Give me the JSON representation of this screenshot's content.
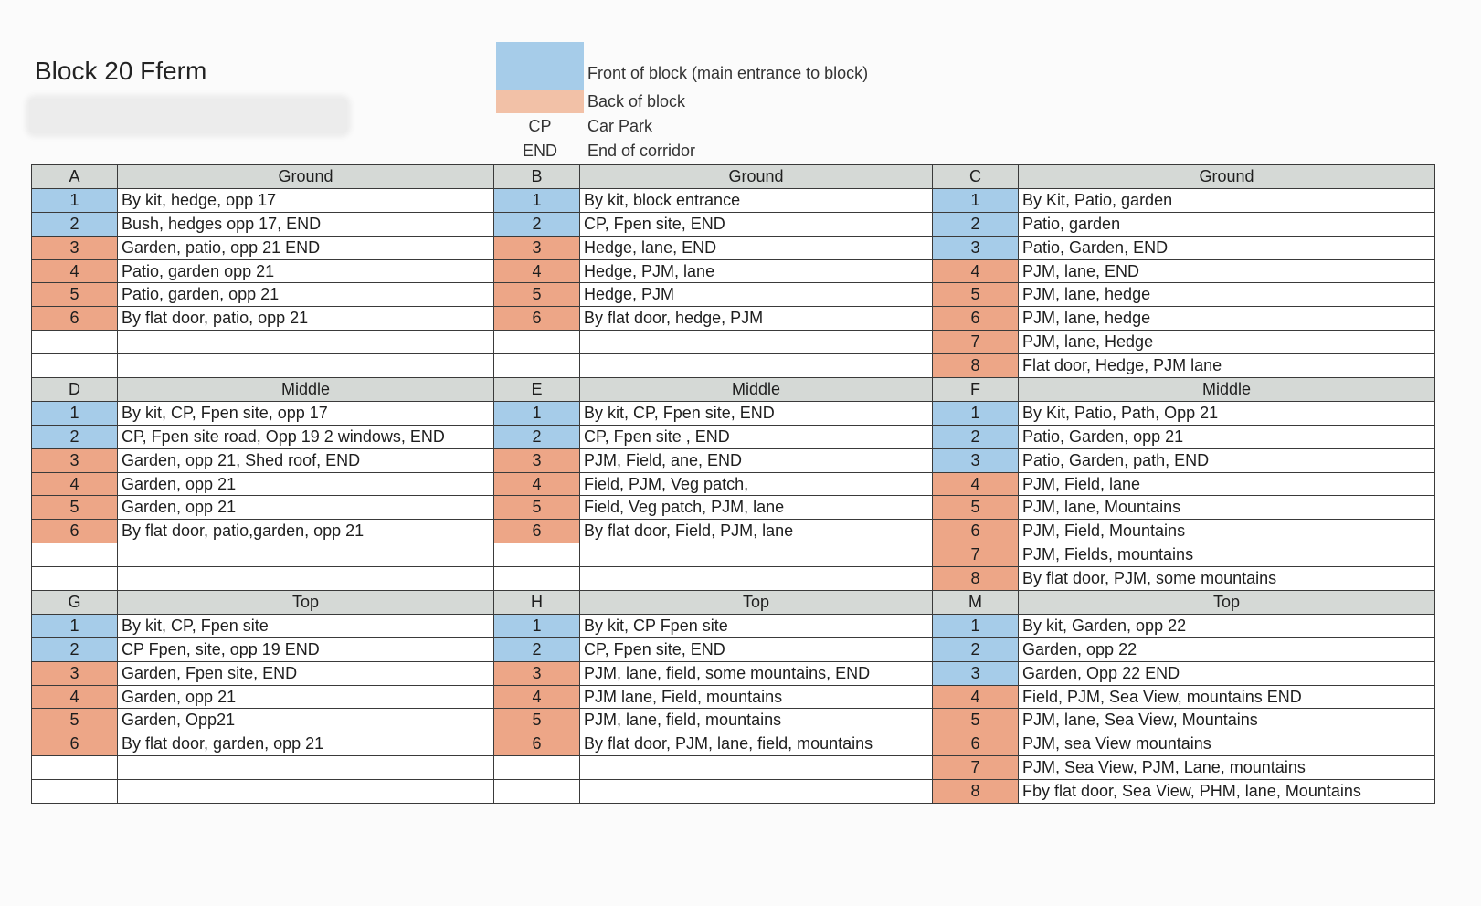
{
  "title": "Block 20  Fferm",
  "colors": {
    "front": "#a6cce9",
    "back": "#eda687",
    "header": "#d5d9d6"
  },
  "legend": {
    "front": "Front of block (main entrance to block)",
    "back": "Back of block",
    "cp_code": "CP",
    "cp_text": "Car Park",
    "end_code": "END",
    "end_text": "End of corridor"
  },
  "bands": [
    {
      "blocks": [
        {
          "letter": "A",
          "floor": "Ground",
          "rows": [
            {
              "n": "1",
              "side": "front",
              "text": "By kit, hedge, opp 17"
            },
            {
              "n": "2",
              "side": "front",
              "text": "Bush, hedges opp 17, END"
            },
            {
              "n": "3",
              "side": "back",
              "text": "Garden, patio, opp 21 END"
            },
            {
              "n": "4",
              "side": "back",
              "text": "Patio, garden opp 21"
            },
            {
              "n": "5",
              "side": "back",
              "text": "Patio, garden, opp 21"
            },
            {
              "n": "6",
              "side": "back",
              "text": "By flat door, patio, opp 21"
            }
          ]
        },
        {
          "letter": "B",
          "floor": "Ground",
          "rows": [
            {
              "n": "1",
              "side": "front",
              "text": "By kit, block entrance"
            },
            {
              "n": "2",
              "side": "front",
              "text": "CP, Fpen site, END"
            },
            {
              "n": "3",
              "side": "back",
              "text": "Hedge, lane, END"
            },
            {
              "n": "4",
              "side": "back",
              "text": "Hedge, PJM, lane"
            },
            {
              "n": "5",
              "side": "back",
              "text": "Hedge, PJM"
            },
            {
              "n": "6",
              "side": "back",
              "text": "By flat door, hedge, PJM"
            }
          ]
        },
        {
          "letter": "C",
          "floor": "Ground",
          "rows": [
            {
              "n": "1",
              "side": "front",
              "text": "By Kit, Patio, garden"
            },
            {
              "n": "2",
              "side": "front",
              "text": "Patio, garden"
            },
            {
              "n": "3",
              "side": "front",
              "text": "Patio, Garden, END"
            },
            {
              "n": "4",
              "side": "back",
              "text": "PJM, lane, END"
            },
            {
              "n": "5",
              "side": "back",
              "text": "PJM, lane, hedge"
            },
            {
              "n": "6",
              "side": "back",
              "text": "PJM, lane, hedge"
            },
            {
              "n": "7",
              "side": "back",
              "text": "PJM, lane, Hedge"
            },
            {
              "n": "8",
              "side": "back",
              "text": "Flat door, Hedge, PJM lane"
            }
          ]
        }
      ]
    },
    {
      "blocks": [
        {
          "letter": "D",
          "floor": "Middle",
          "rows": [
            {
              "n": "1",
              "side": "front",
              "text": "By kit, CP, Fpen site, opp 17"
            },
            {
              "n": "2",
              "side": "front",
              "text": "CP, Fpen site road, Opp 19 2 windows, END"
            },
            {
              "n": "3",
              "side": "back",
              "text": "Garden, opp 21, Shed roof, END"
            },
            {
              "n": "4",
              "side": "back",
              "text": "Garden, opp 21"
            },
            {
              "n": "5",
              "side": "back",
              "text": "Garden, opp 21"
            },
            {
              "n": "6",
              "side": "back",
              "text": "By flat door, patio,garden, opp 21"
            }
          ]
        },
        {
          "letter": "E",
          "floor": "Middle",
          "rows": [
            {
              "n": "1",
              "side": "front",
              "text": "By kit, CP, Fpen site, END"
            },
            {
              "n": "2",
              "side": "front",
              "text": "CP, Fpen site , END"
            },
            {
              "n": "3",
              "side": "back",
              "text": "PJM, Field, ane, END"
            },
            {
              "n": "4",
              "side": "back",
              "text": "Field, PJM, Veg patch,"
            },
            {
              "n": "5",
              "side": "back",
              "text": "Field, Veg patch, PJM, lane"
            },
            {
              "n": "6",
              "side": "back",
              "text": "By flat door, Field, PJM, lane"
            }
          ]
        },
        {
          "letter": "F",
          "floor": "Middle",
          "rows": [
            {
              "n": "1",
              "side": "front",
              "text": "By Kit, Patio, Path, Opp 21"
            },
            {
              "n": "2",
              "side": "front",
              "text": "Patio, Garden, opp 21"
            },
            {
              "n": "3",
              "side": "front",
              "text": "Patio, Garden, path, END"
            },
            {
              "n": "4",
              "side": "back",
              "text": "PJM, Field, lane"
            },
            {
              "n": "5",
              "side": "back",
              "text": "PJM, lane, Mountains"
            },
            {
              "n": "6",
              "side": "back",
              "text": "PJM, Field, Mountains"
            },
            {
              "n": "7",
              "side": "back",
              "text": "PJM, Fields, mountains"
            },
            {
              "n": "8",
              "side": "back",
              "text": "By flat door, PJM, some mountains"
            }
          ]
        }
      ]
    },
    {
      "blocks": [
        {
          "letter": "G",
          "floor": "Top",
          "rows": [
            {
              "n": "1",
              "side": "front",
              "text": "By kit, CP, Fpen site"
            },
            {
              "n": "2",
              "side": "front",
              "text": "CP Fpen, site, opp 19 END"
            },
            {
              "n": "3",
              "side": "back",
              "text": "Garden, Fpen site, END"
            },
            {
              "n": "4",
              "side": "back",
              "text": "Garden, opp 21"
            },
            {
              "n": "5",
              "side": "back",
              "text": "Garden, Opp21"
            },
            {
              "n": "6",
              "side": "back",
              "text": "By flat door, garden, opp 21"
            }
          ]
        },
        {
          "letter": "H",
          "floor": "Top",
          "rows": [
            {
              "n": "1",
              "side": "front",
              "text": "By kit, CP Fpen site"
            },
            {
              "n": "2",
              "side": "front",
              "text": "CP, Fpen site, END"
            },
            {
              "n": "3",
              "side": "back",
              "text": "PJM, lane, field, some mountains, END"
            },
            {
              "n": "4",
              "side": "back",
              "text": "PJM lane, Field, mountains"
            },
            {
              "n": "5",
              "side": "back",
              "text": "PJM, lane, field, mountains"
            },
            {
              "n": "6",
              "side": "back",
              "text": "By flat door, PJM, lane, field, mountains"
            }
          ]
        },
        {
          "letter": "M",
          "floor": "Top",
          "rows": [
            {
              "n": "1",
              "side": "front",
              "text": "By kit, Garden, opp 22"
            },
            {
              "n": "2",
              "side": "front",
              "text": "Garden, opp 22"
            },
            {
              "n": "3",
              "side": "front",
              "text": "Garden, Opp 22 END"
            },
            {
              "n": "4",
              "side": "back",
              "text": "Field, PJM, Sea View, mountains END"
            },
            {
              "n": "5",
              "side": "back",
              "text": "PJM, lane, Sea View, Mountains"
            },
            {
              "n": "6",
              "side": "back",
              "text": "PJM, sea View mountains"
            },
            {
              "n": "7",
              "side": "back",
              "text": "PJM, Sea View, PJM, Lane, mountains"
            },
            {
              "n": "8",
              "side": "back",
              "text": "Fby flat door, Sea View, PHM, lane, Mountains"
            }
          ]
        }
      ]
    }
  ]
}
